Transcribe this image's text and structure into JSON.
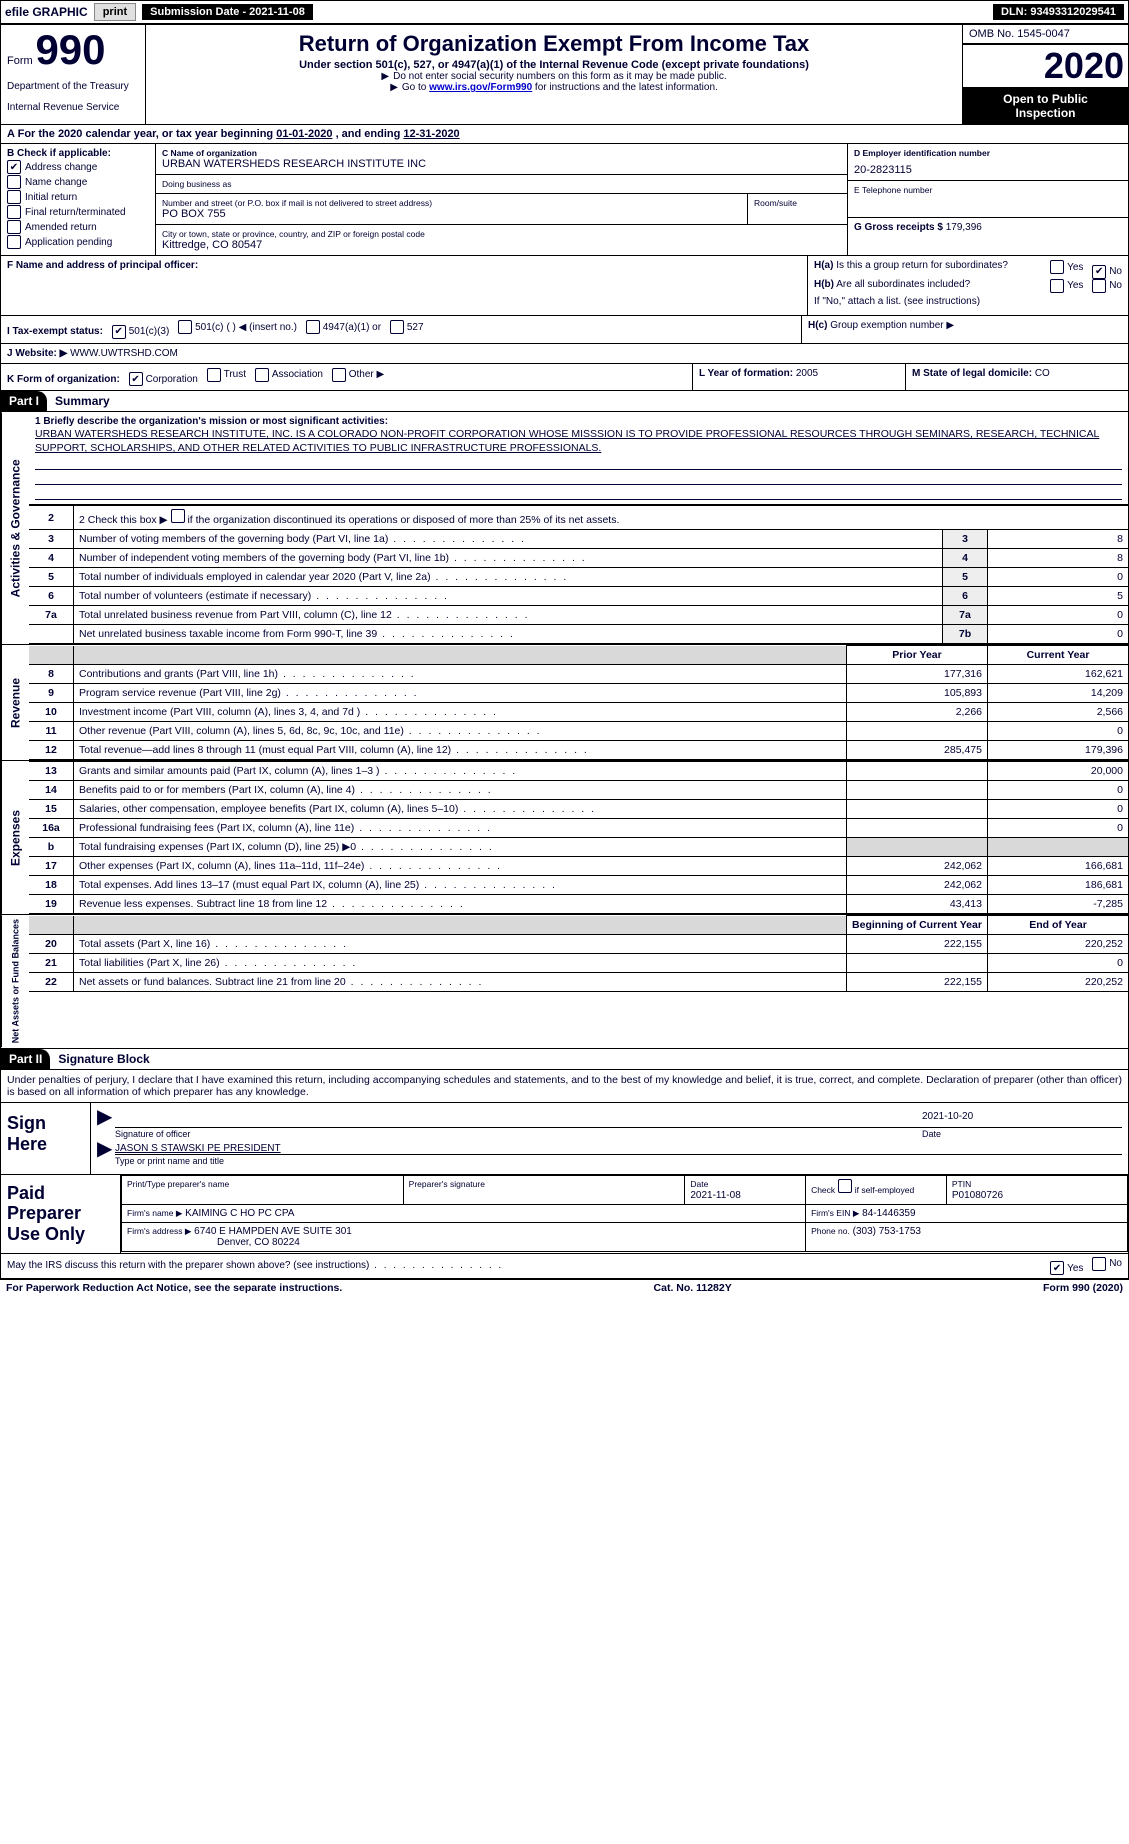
{
  "topbar": {
    "efile": "efile GRAPHIC",
    "print": "print",
    "subdate_label": "Submission Date - 2021-11-08",
    "dln": "DLN: 93493312029541"
  },
  "hdr": {
    "form_prefix": "Form",
    "form_no": "990",
    "dept": "Department of the Treasury",
    "irs": "Internal Revenue Service",
    "title": "Return of Organization Exempt From Income Tax",
    "subtitle": "Under section 501(c), 527, or 4947(a)(1) of the Internal Revenue Code (except private foundations)",
    "note1": "Do not enter social security numbers on this form as it may be made public.",
    "note2_pre": "Go to ",
    "note2_link": "www.irs.gov/Form990",
    "note2_post": " for instructions and the latest information.",
    "omb": "OMB No. 1545-0047",
    "year": "2020",
    "open1": "Open to Public",
    "open2": "Inspection"
  },
  "rowA": {
    "label_a": "A",
    "text": "For the 2020 calendar year, or tax year beginning ",
    "begin": "01-01-2020",
    "mid": " , and ending ",
    "end": "12-31-2020"
  },
  "B": {
    "header": "B Check if applicable:",
    "items": [
      {
        "label": "Address change",
        "checked": true,
        "name": "chk-address-change"
      },
      {
        "label": "Name change",
        "checked": false,
        "name": "chk-name-change"
      },
      {
        "label": "Initial return",
        "checked": false,
        "name": "chk-initial-return"
      },
      {
        "label": "Final return/terminated",
        "checked": false,
        "name": "chk-final-return"
      },
      {
        "label": "Amended return",
        "checked": false,
        "name": "chk-amended-return"
      },
      {
        "label": "Application pending",
        "checked": false,
        "name": "chk-application-pending"
      }
    ]
  },
  "C": {
    "name_label": "C Name of organization",
    "name": "URBAN WATERSHEDS RESEARCH INSTITUTE INC",
    "dba_label": "Doing business as",
    "dba": "",
    "street_label": "Number and street (or P.O. box if mail is not delivered to street address)",
    "room_label": "Room/suite",
    "street": "PO BOX 755",
    "city_label": "City or town, state or province, country, and ZIP or foreign postal code",
    "city": "Kittredge, CO  80547"
  },
  "D": {
    "label": "D Employer identification number",
    "value": "20-2823115"
  },
  "E": {
    "label": "E Telephone number",
    "value": ""
  },
  "G": {
    "label": "G Gross receipts $",
    "value": "179,396"
  },
  "F": {
    "label": "F  Name and address of principal officer:",
    "value": ""
  },
  "H": {
    "a_label": "H(a)",
    "a_text": "Is this a group return for subordinates?",
    "a_yes": false,
    "a_no": true,
    "b_label": "H(b)",
    "b_text": "Are all subordinates included?",
    "b_yes": false,
    "b_no": false,
    "b_note": "If \"No,\" attach a list. (see instructions)",
    "c_label": "H(c)",
    "c_text": "Group exemption number ▶"
  },
  "I": {
    "label": "I  Tax-exempt status:",
    "c501c3": true,
    "c501c": false,
    "c501c_blank": "( )  ◀ (insert no.)",
    "c4947": false,
    "c527": false,
    "l501c3": "501(c)(3)",
    "l501c": "501(c)",
    "l4947": "4947(a)(1) or",
    "l527": "527"
  },
  "J": {
    "label": "J   Website: ▶",
    "value": "WWW.UWTRSHD.COM"
  },
  "K": {
    "label": "K Form of organization:",
    "corp": true,
    "trust": false,
    "assoc": false,
    "other": false,
    "lcorp": "Corporation",
    "ltrust": "Trust",
    "lassoc": "Association",
    "lother": "Other ▶"
  },
  "L": {
    "label": "L Year of formation:",
    "value": "2005"
  },
  "M": {
    "label": "M State of legal domicile:",
    "value": "CO"
  },
  "partI": {
    "part": "Part I",
    "title": "Summary"
  },
  "mission_label": "1  Briefly describe the organization's mission or most significant activities:",
  "mission": "URBAN WATERSHEDS RESEARCH INSTITUTE, INC. IS A COLORADO NON-PROFIT CORPORATION WHOSE MISSSION IS TO PROVIDE PROFESSIONAL RESOURCES THROUGH SEMINARS, RESEARCH, TECHNICAL SUPPORT, SCHOLARSHIPS, AND OTHER RELATED ACTIVITIES TO PUBLIC INFRASTRUCTURE PROFESSIONALS.",
  "gov": {
    "l2": "2   Check this box ▶",
    "l2b": " if the organization discontinued its operations or disposed of more than 25% of its net assets.",
    "rows": [
      {
        "n": "3",
        "t": "Number of voting members of the governing body (Part VI, line 1a)",
        "box": "3",
        "v": "8"
      },
      {
        "n": "4",
        "t": "Number of independent voting members of the governing body (Part VI, line 1b)",
        "box": "4",
        "v": "8"
      },
      {
        "n": "5",
        "t": "Total number of individuals employed in calendar year 2020 (Part V, line 2a)",
        "box": "5",
        "v": "0"
      },
      {
        "n": "6",
        "t": "Total number of volunteers (estimate if necessary)",
        "box": "6",
        "v": "5"
      },
      {
        "n": "7a",
        "t": "Total unrelated business revenue from Part VIII, column (C), line 12",
        "box": "7a",
        "v": "0"
      },
      {
        "n": "",
        "t": "Net unrelated business taxable income from Form 990-T, line 39",
        "box": "7b",
        "v": "0"
      }
    ]
  },
  "fin_hdr": {
    "prior": "Prior Year",
    "current": "Current Year",
    "boy": "Beginning of Current Year",
    "eoy": "End of Year"
  },
  "rev": [
    {
      "n": "8",
      "t": "Contributions and grants (Part VIII, line 1h)",
      "p": "177,316",
      "c": "162,621"
    },
    {
      "n": "9",
      "t": "Program service revenue (Part VIII, line 2g)",
      "p": "105,893",
      "c": "14,209"
    },
    {
      "n": "10",
      "t": "Investment income (Part VIII, column (A), lines 3, 4, and 7d )",
      "p": "2,266",
      "c": "2,566"
    },
    {
      "n": "11",
      "t": "Other revenue (Part VIII, column (A), lines 5, 6d, 8c, 9c, 10c, and 11e)",
      "p": "",
      "c": "0"
    },
    {
      "n": "12",
      "t": "Total revenue—add lines 8 through 11 (must equal Part VIII, column (A), line 12)",
      "p": "285,475",
      "c": "179,396"
    }
  ],
  "exp": [
    {
      "n": "13",
      "t": "Grants and similar amounts paid (Part IX, column (A), lines 1–3 )",
      "p": "",
      "c": "20,000"
    },
    {
      "n": "14",
      "t": "Benefits paid to or for members (Part IX, column (A), line 4)",
      "p": "",
      "c": "0"
    },
    {
      "n": "15",
      "t": "Salaries, other compensation, employee benefits (Part IX, column (A), lines 5–10)",
      "p": "",
      "c": "0"
    },
    {
      "n": "16a",
      "t": "Professional fundraising fees (Part IX, column (A), line 11e)",
      "p": "",
      "c": "0"
    },
    {
      "n": "b",
      "t": "Total fundraising expenses (Part IX, column (D), line 25) ▶0",
      "p": "GREY",
      "c": "GREY"
    },
    {
      "n": "17",
      "t": "Other expenses (Part IX, column (A), lines 11a–11d, 11f–24e)",
      "p": "242,062",
      "c": "166,681"
    },
    {
      "n": "18",
      "t": "Total expenses. Add lines 13–17 (must equal Part IX, column (A), line 25)",
      "p": "242,062",
      "c": "186,681"
    },
    {
      "n": "19",
      "t": "Revenue less expenses. Subtract line 18 from line 12",
      "p": "43,413",
      "c": "-7,285"
    }
  ],
  "net": [
    {
      "n": "20",
      "t": "Total assets (Part X, line 16)",
      "p": "222,155",
      "c": "220,252"
    },
    {
      "n": "21",
      "t": "Total liabilities (Part X, line 26)",
      "p": "",
      "c": "0"
    },
    {
      "n": "22",
      "t": "Net assets or fund balances. Subtract line 21 from line 20",
      "p": "222,155",
      "c": "220,252"
    }
  ],
  "partII": {
    "part": "Part II",
    "title": "Signature Block"
  },
  "sig": {
    "decl": "Under penalties of perjury, I declare that I have examined this return, including accompanying schedules and statements, and to the best of my knowledge and belief, it is true, correct, and complete. Declaration of preparer (other than officer) is based on all information of which preparer has any knowledge.",
    "sign_here": "Sign Here",
    "sig_officer_lbl": "Signature of officer",
    "date_lbl": "Date",
    "date": "2021-10-20",
    "name": "JASON S STAWSKI PE  PRESIDENT",
    "name_lbl": "Type or print name and title"
  },
  "prep": {
    "lead": "Paid Preparer Use Only",
    "h_name": "Print/Type preparer's name",
    "h_sig": "Preparer's signature",
    "h_date": "Date",
    "date": "2021-11-08",
    "h_self": "Check",
    "h_self2": "if self-employed",
    "h_ptin": "PTIN",
    "ptin": "P01080726",
    "firm_lbl": "Firm's name    ▶",
    "firm": "KAIMING C HO PC CPA",
    "ein_lbl": "Firm's EIN ▶",
    "ein": "84-1446359",
    "addr_lbl": "Firm's address ▶",
    "addr1": "6740 E HAMPDEN AVE SUITE 301",
    "addr2": "Denver, CO  80224",
    "phone_lbl": "Phone no.",
    "phone": "(303) 753-1753"
  },
  "discuss": {
    "text": "May the IRS discuss this return with the preparer shown above? (see instructions)",
    "yes": true,
    "no": false
  },
  "footer": {
    "left": "For Paperwork Reduction Act Notice, see the separate instructions.",
    "mid": "Cat. No. 11282Y",
    "right_pre": "Form ",
    "right_b": "990",
    "right_post": " (2020)"
  },
  "labels": {
    "yes": "Yes",
    "no": "No"
  },
  "vlabels": {
    "gov": "Activities & Governance",
    "rev": "Revenue",
    "exp": "Expenses",
    "net": "Net Assets or Fund Balances"
  }
}
